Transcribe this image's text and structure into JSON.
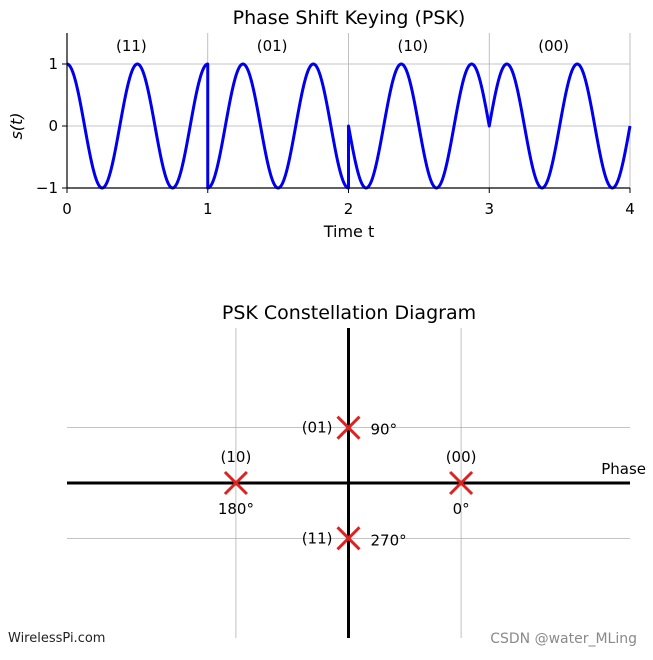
{
  "watermarks": {
    "left": "WirelessPi.com",
    "right": "CSDN @water_MLing"
  },
  "chart_data": [
    {
      "type": "line",
      "title": "Phase Shift Keying (PSK)",
      "xlabel": "Time t",
      "ylabel": "s(t)",
      "xlim": [
        0,
        4
      ],
      "ylim": [
        -1,
        1.5
      ],
      "xticks": [
        "0",
        "1",
        "2",
        "3",
        "4"
      ],
      "yticks": [
        "−1",
        "0",
        "1"
      ],
      "grid": true,
      "line_color": "#0000ee",
      "cycles_per_symbol": 2,
      "symbols": [
        {
          "bits": "(11)",
          "phase_deg": 270
        },
        {
          "bits": "(01)",
          "phase_deg": 90
        },
        {
          "bits": "(10)",
          "phase_deg": 180
        },
        {
          "bits": "(00)",
          "phase_deg": 0
        }
      ]
    },
    {
      "type": "scatter",
      "title": "PSK Constellation Diagram",
      "axis_label": "Phase",
      "xlim": [
        -1.25,
        1.25
      ],
      "ylim": [
        -1.4,
        1.4
      ],
      "grid": true,
      "marker": "x",
      "marker_color": "#dd2222",
      "points": [
        {
          "bits": "(00)",
          "angle": "0°",
          "x": 0.5,
          "y": 0
        },
        {
          "bits": "(01)",
          "angle": "90°",
          "x": 0,
          "y": 0.5
        },
        {
          "bits": "(10)",
          "angle": "180°",
          "x": -0.5,
          "y": 0
        },
        {
          "bits": "(11)",
          "angle": "270°",
          "x": 0,
          "y": -0.5
        }
      ]
    }
  ]
}
